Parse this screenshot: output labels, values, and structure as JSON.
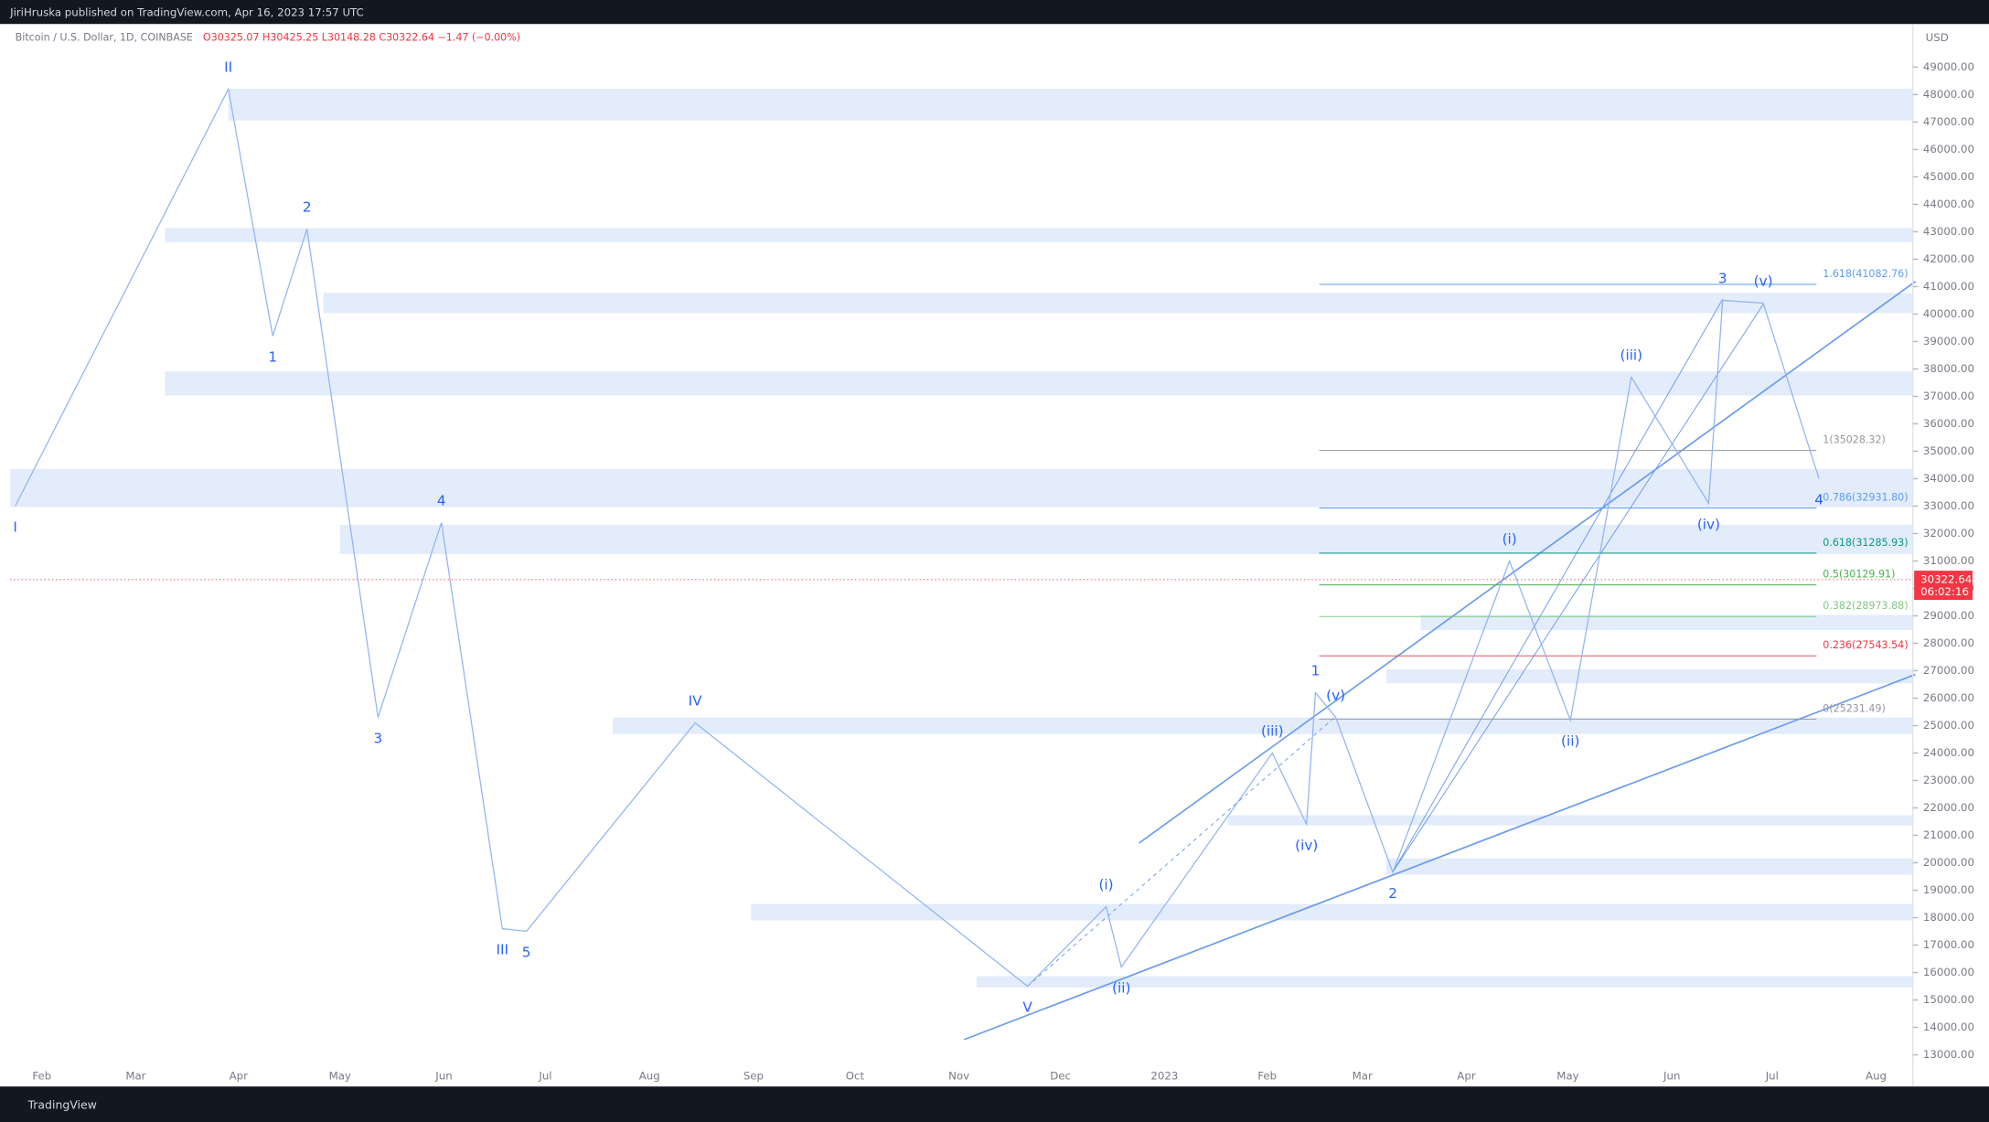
{
  "header": {
    "publisher": "JiriHruska published on TradingView.com, Apr 16, 2023 17:57 UTC"
  },
  "legend": {
    "symbol": "Bitcoin / U.S. Dollar, 1D, COINBASE",
    "ohlc": "O30325.07 H30425.25 L30148.28 C30322.64 −1.47 (−0.00%)"
  },
  "footer": {
    "brand": "TradingView"
  },
  "chart_data": {
    "type": "line",
    "currency": "USD",
    "categories": [
      "Feb",
      "Mar",
      "Apr",
      "May",
      "Jun",
      "Jul",
      "Aug",
      "Sep",
      "Oct",
      "Nov",
      "Dec",
      "2023",
      "Feb",
      "Mar",
      "Apr",
      "May",
      "Jun",
      "Jul",
      "Aug"
    ],
    "ylim": [
      11845,
      50200
    ],
    "yticks": [
      {
        "value": 13000,
        "label": "13000.00"
      },
      {
        "value": 14000,
        "label": "14000.00"
      },
      {
        "value": 15000,
        "label": "15000.00"
      },
      {
        "value": 16000,
        "label": "16000.00"
      },
      {
        "value": 17000,
        "label": "17000.00"
      },
      {
        "value": 18000,
        "label": "18000.00"
      },
      {
        "value": 19000,
        "label": "19000.00"
      },
      {
        "value": 20000,
        "label": "20000.00"
      },
      {
        "value": 21000,
        "label": "21000.00"
      },
      {
        "value": 22000,
        "label": "22000.00"
      },
      {
        "value": 23000,
        "label": "23000.00"
      },
      {
        "value": 24000,
        "label": "24000.00"
      },
      {
        "value": 25000,
        "label": "25000.00"
      },
      {
        "value": 26000,
        "label": "26000.00"
      },
      {
        "value": 27000,
        "label": "27000.00"
      },
      {
        "value": 28000,
        "label": "28000.00"
      },
      {
        "value": 29000,
        "label": "29000.00"
      },
      {
        "value": 30000,
        "label": "30000.00"
      },
      {
        "value": 31000,
        "label": "31000.00"
      },
      {
        "value": 32000,
        "label": "32000.00"
      },
      {
        "value": 33000,
        "label": "33000.00"
      },
      {
        "value": 34000,
        "label": "34000.00"
      },
      {
        "value": 35000,
        "label": "35000.00"
      },
      {
        "value": 36000,
        "label": "36000.00"
      },
      {
        "value": 37000,
        "label": "37000.00"
      },
      {
        "value": 38000,
        "label": "38000.00"
      },
      {
        "value": 39000,
        "label": "39000.00"
      },
      {
        "value": 40000,
        "label": "40000.00"
      },
      {
        "value": 41000,
        "label": "41000.00"
      },
      {
        "value": 42000,
        "label": "42000.00"
      },
      {
        "value": 43000,
        "label": "43000.00"
      },
      {
        "value": 44000,
        "label": "44000.00"
      },
      {
        "value": 45000,
        "label": "45000.00"
      },
      {
        "value": 46000,
        "label": "46000.00"
      },
      {
        "value": 47000,
        "label": "47000.00"
      },
      {
        "value": 48000,
        "label": "48000.00"
      },
      {
        "value": 49000,
        "label": "49000.00"
      }
    ],
    "waves": {
      "color": "#2962ff",
      "labels": [
        "I",
        "II",
        "1",
        "2",
        "3",
        "4",
        "III",
        "5",
        "IV",
        "V",
        "(i)",
        "(ii)",
        "(iii)",
        "(iv)",
        "1",
        "(v)",
        "2",
        "(i)",
        "(ii)",
        "(iii)",
        "(iv)",
        "3",
        "(v)",
        "4"
      ],
      "values": [
        33000,
        48200,
        39200,
        43100,
        25300,
        32400,
        17600,
        17500,
        25100,
        15500,
        18400,
        16200,
        24000,
        21400,
        26200,
        25300,
        19650,
        31000,
        25200,
        37700,
        33100,
        40500,
        40400,
        34000
      ]
    },
    "fib": [
      {
        "label": "1.618(41082.76)",
        "value": 41082.76,
        "color": "#5b9cf6"
      },
      {
        "label": "1(35028.32)",
        "value": 35028.32,
        "color": "#9598a1"
      },
      {
        "label": "0.786(32931.80)",
        "value": 32931.8,
        "color": "#5b9cf6"
      },
      {
        "label": "0.618(31285.93)",
        "value": 31285.93,
        "color": "#089981"
      },
      {
        "label": "0.5(30129.91)",
        "value": 30129.91,
        "color": "#4caf50"
      },
      {
        "label": "0.382(28973.88)",
        "value": 28973.88,
        "color": "#81c784"
      },
      {
        "label": "0.236(27543.54)",
        "value": 27543.54,
        "color": "#f23645"
      },
      {
        "label": "0(25231.49)",
        "value": 25231.49,
        "color": "#9598a1"
      }
    ],
    "last_price": {
      "value": 30322.64,
      "label": "30322.64",
      "countdown": "06:02:16",
      "color": "#f23645"
    }
  }
}
